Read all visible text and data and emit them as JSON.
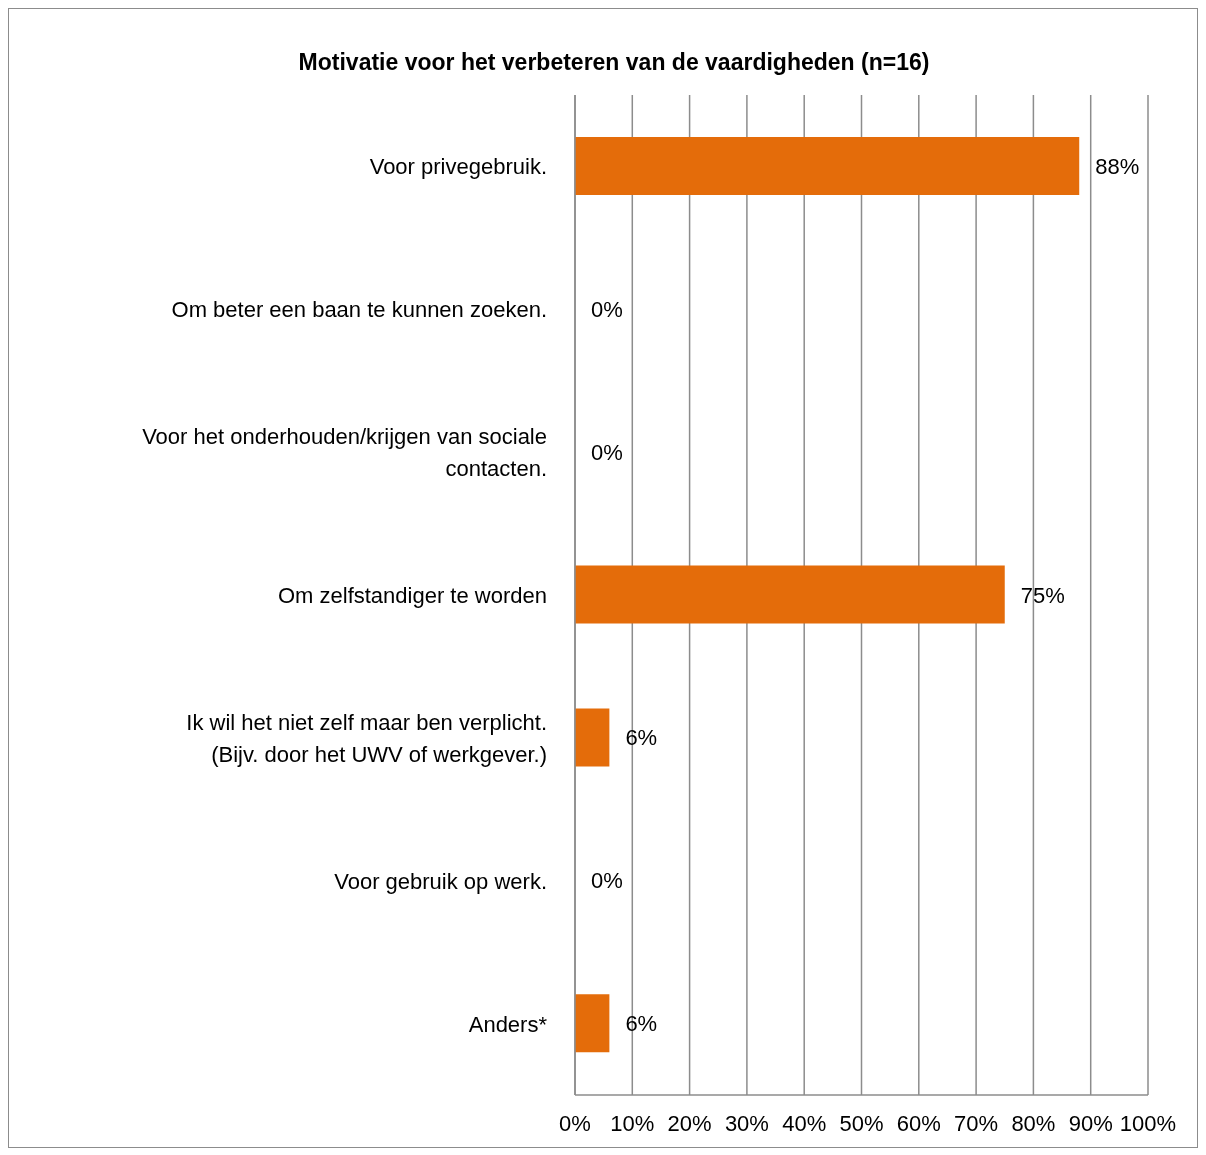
{
  "chart_data": {
    "type": "bar",
    "orientation": "horizontal",
    "title": "Motivatie voor het verbeteren van de vaardigheden (n=16)",
    "categories": [
      "Voor privegebruik.",
      "Om beter een baan te kunnen zoeken.",
      "Voor het onderhouden/krijgen van sociale contacten.",
      "Om zelfstandiger te worden",
      "Ik wil het niet zelf maar ben verplicht. (Bijv. door het UWV of werkgever.)",
      "Voor gebruik op werk.",
      "Anders*"
    ],
    "values": [
      88,
      0,
      0,
      75,
      6,
      0,
      6
    ],
    "value_labels": [
      "88%",
      "0%",
      "0%",
      "75%",
      "6%",
      "0%",
      "6%"
    ],
    "color": "#e46c0a",
    "xlim": [
      0,
      100
    ],
    "xticks": [
      {
        "value": 0,
        "label": "0%"
      },
      {
        "value": 10,
        "label": "10%"
      },
      {
        "value": 20,
        "label": "20%"
      },
      {
        "value": 30,
        "label": "30%"
      },
      {
        "value": 40,
        "label": "40%"
      },
      {
        "value": 50,
        "label": "50%"
      },
      {
        "value": 60,
        "label": "60%"
      },
      {
        "value": 70,
        "label": "70%"
      },
      {
        "value": 80,
        "label": "80%"
      },
      {
        "value": 90,
        "label": "90%"
      },
      {
        "value": 100,
        "label": "100%"
      }
    ],
    "grid": "x",
    "legend": false
  }
}
